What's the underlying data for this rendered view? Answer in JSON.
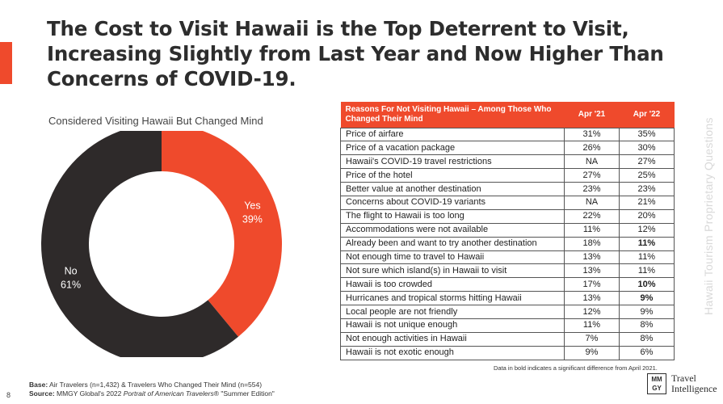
{
  "page": {
    "title": "The Cost to Visit Hawaii is the Top Deterrent to Visit, Increasing Slightly from Last Year and Now Higher Than Concerns of COVID-19.",
    "side_label": "Hawaii Tourism Proprietary Questions",
    "page_number": "8",
    "accent_color": "#ef4a2c"
  },
  "chart_data": [
    {
      "type": "pie",
      "title": "Considered Visiting Hawaii But Changed Mind",
      "slices": [
        {
          "label": "Yes",
          "value": 39,
          "display": "39%",
          "color": "#ef4a2c"
        },
        {
          "label": "No",
          "value": 61,
          "display": "61%",
          "color": "#2e2a2a"
        }
      ]
    },
    {
      "type": "table",
      "columns": [
        "Reasons For Not Visiting Hawaii – Among Those Who Changed Their Mind",
        "Apr '21",
        "Apr '22"
      ],
      "rows": [
        {
          "reason": "Price of airfare",
          "apr21": "31%",
          "apr22": "35%",
          "bold": false
        },
        {
          "reason": "Price of a vacation package",
          "apr21": "26%",
          "apr22": "30%",
          "bold": false
        },
        {
          "reason": "Hawaii's COVID-19 travel restrictions",
          "apr21": "NA",
          "apr22": "27%",
          "bold": false
        },
        {
          "reason": "Price of the hotel",
          "apr21": "27%",
          "apr22": "25%",
          "bold": false
        },
        {
          "reason": "Better value at another destination",
          "apr21": "23%",
          "apr22": "23%",
          "bold": false
        },
        {
          "reason": "Concerns about COVID-19 variants",
          "apr21": "NA",
          "apr22": "21%",
          "bold": false
        },
        {
          "reason": "The flight to Hawaii is too long",
          "apr21": "22%",
          "apr22": "20%",
          "bold": false
        },
        {
          "reason": "Accommodations were not available",
          "apr21": "11%",
          "apr22": "12%",
          "bold": false
        },
        {
          "reason": "Already been and want to try another destination",
          "apr21": "18%",
          "apr22": "11%",
          "bold": true
        },
        {
          "reason": "Not enough time to travel to Hawaii",
          "apr21": "13%",
          "apr22": "11%",
          "bold": false
        },
        {
          "reason": "Not sure which island(s) in Hawaii to visit",
          "apr21": "13%",
          "apr22": "11%",
          "bold": false
        },
        {
          "reason": "Hawaii is too crowded",
          "apr21": "17%",
          "apr22": "10%",
          "bold": true
        },
        {
          "reason": "Hurricanes and tropical storms hitting Hawaii",
          "apr21": "13%",
          "apr22": "9%",
          "bold": true
        },
        {
          "reason": "Local people are not friendly",
          "apr21": "12%",
          "apr22": "9%",
          "bold": false
        },
        {
          "reason": "Hawaii is not unique enough",
          "apr21": "11%",
          "apr22": "8%",
          "bold": false
        },
        {
          "reason": "Not enough activities in Hawaii",
          "apr21": "7%",
          "apr22": "8%",
          "bold": false
        },
        {
          "reason": "Hawaii is not exotic enough",
          "apr21": "9%",
          "apr22": "6%",
          "bold": false
        }
      ],
      "note": "Data in bold indicates a significant difference from April 2021."
    }
  ],
  "footer": {
    "base_label": "Base:",
    "base_text": " Air Travelers (n=1,432) & Travelers Who Changed Their Mind (n=554)",
    "source_label": "Source:",
    "source_text": " MMGY Global's 2022 ",
    "source_italic": "Portrait of American Travelers",
    "source_tail": "® \"Summer Edition\""
  },
  "logo": {
    "mark_top": "MM",
    "mark_bottom": "GY",
    "line1": "Travel",
    "line2": "Intelligence"
  }
}
